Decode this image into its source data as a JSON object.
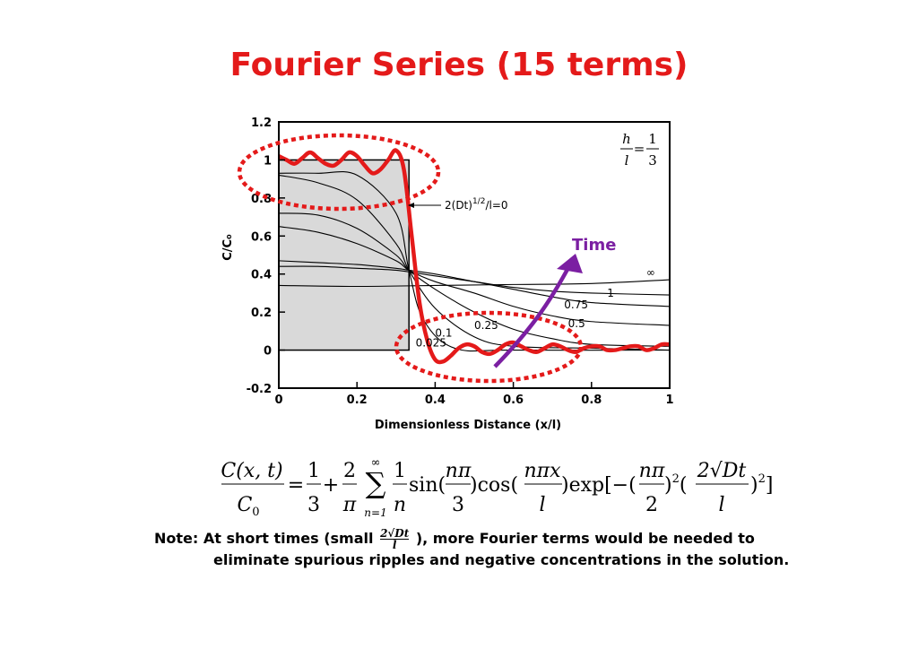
{
  "title": "Fourier Series (15 terms)",
  "colors": {
    "title": "#e41a1a",
    "fourier": "#e41a1a",
    "time_arrow": "#7b1fa2",
    "shaded": "#d9d9d9"
  },
  "chart_data": {
    "type": "line",
    "xlabel": "Dimensionless Distance (x/l)",
    "ylabel": "C/C₀",
    "xlim": [
      0,
      1
    ],
    "ylim": [
      -0.2,
      1.2
    ],
    "x_ticks": [
      "0",
      "0.2",
      "0.4",
      "0.6",
      "0.8",
      "1"
    ],
    "y_ticks": [
      "1.2",
      "1",
      "0.8",
      "0.6",
      "0.4",
      "0.2",
      "0",
      "-0.2"
    ],
    "ratio_label": {
      "lhs_num": "h",
      "lhs_den": "l",
      "rhs_num": "1",
      "rhs_den": "3"
    },
    "initial_label": "2(Dt)¹ᐟ²/l=0",
    "initial_label_parts": {
      "pre": "2(Dt)",
      "sup": "1/2",
      "post": "/l=0"
    },
    "time_label": "Time",
    "series": [
      {
        "name": "0",
        "x": [
          0,
          0.333,
          0.333,
          1
        ],
        "y": [
          1,
          1,
          0,
          0
        ]
      },
      {
        "name": "0.025",
        "x": [
          0,
          0.1,
          0.2,
          0.3,
          0.333,
          0.37,
          0.45,
          0.6,
          1
        ],
        "y": [
          0.93,
          0.93,
          0.92,
          0.72,
          0.42,
          0.16,
          0.01,
          0,
          0
        ]
      },
      {
        "name": "0.1",
        "x": [
          0,
          0.1,
          0.2,
          0.3,
          0.333,
          0.4,
          0.5,
          0.6,
          0.8,
          1
        ],
        "y": [
          0.92,
          0.88,
          0.79,
          0.56,
          0.42,
          0.22,
          0.07,
          0.02,
          0.01,
          0
        ]
      },
      {
        "name": "0.25",
        "x": [
          0,
          0.1,
          0.2,
          0.3,
          0.333,
          0.4,
          0.5,
          0.6,
          0.7,
          0.8,
          1
        ],
        "y": [
          0.72,
          0.71,
          0.64,
          0.5,
          0.42,
          0.32,
          0.2,
          0.11,
          0.06,
          0.03,
          0.02
        ]
      },
      {
        "name": "0.5",
        "x": [
          0,
          0.1,
          0.2,
          0.3,
          0.333,
          0.4,
          0.5,
          0.6,
          0.7,
          0.8,
          1
        ],
        "y": [
          0.65,
          0.62,
          0.56,
          0.47,
          0.42,
          0.36,
          0.3,
          0.23,
          0.18,
          0.15,
          0.13
        ]
      },
      {
        "name": "0.75",
        "x": [
          0,
          0.1,
          0.2,
          0.3,
          0.333,
          0.4,
          0.5,
          0.6,
          0.7,
          0.8,
          1
        ],
        "y": [
          0.47,
          0.46,
          0.45,
          0.43,
          0.42,
          0.4,
          0.36,
          0.32,
          0.28,
          0.25,
          0.23
        ]
      },
      {
        "name": "1",
        "x": [
          0,
          0.1,
          0.2,
          0.3,
          0.4,
          0.5,
          0.6,
          0.7,
          0.8,
          1
        ],
        "y": [
          0.44,
          0.44,
          0.43,
          0.42,
          0.39,
          0.36,
          0.33,
          0.31,
          0.3,
          0.29
        ]
      },
      {
        "name": "∞",
        "x": [
          0,
          0.2,
          0.4,
          0.6,
          0.8,
          1
        ],
        "y": [
          0.34,
          0.335,
          0.34,
          0.345,
          0.35,
          0.37
        ]
      },
      {
        "name": "Fourier Series (15 terms)",
        "color": "#e41a1a",
        "x": [
          0,
          0.02,
          0.04,
          0.06,
          0.08,
          0.1,
          0.12,
          0.14,
          0.16,
          0.18,
          0.2,
          0.22,
          0.24,
          0.26,
          0.28,
          0.3,
          0.32,
          0.34,
          0.36,
          0.38,
          0.4,
          0.42,
          0.44,
          0.46,
          0.48,
          0.5,
          0.52,
          0.54,
          0.56,
          0.58,
          0.6,
          0.62,
          0.64,
          0.66,
          0.68,
          0.7,
          0.72,
          0.74,
          0.76,
          0.78,
          0.8,
          0.82,
          0.84,
          0.86,
          0.88,
          0.9,
          0.92,
          0.94,
          0.96,
          0.98,
          1
        ],
        "y": [
          1.02,
          1.0,
          0.98,
          1.01,
          1.04,
          1.01,
          0.98,
          0.97,
          1.0,
          1.04,
          1.02,
          0.97,
          0.93,
          0.95,
          1.0,
          1.05,
          0.95,
          0.6,
          0.25,
          0.05,
          -0.05,
          -0.06,
          -0.03,
          0.01,
          0.03,
          0.02,
          -0.01,
          -0.02,
          0.0,
          0.03,
          0.04,
          0.02,
          0.0,
          -0.01,
          0.01,
          0.03,
          0.02,
          0.0,
          -0.01,
          0.01,
          0.02,
          0.02,
          0.0,
          0.0,
          0.01,
          0.02,
          0.02,
          0.0,
          0.01,
          0.03,
          0.03
        ]
      }
    ],
    "curve_labels": [
      "0.025",
      "0.1",
      "0.25",
      "0.5",
      "0.75",
      "1",
      "∞"
    ]
  },
  "formula": {
    "lhs_num": "C(x, t)",
    "lhs_den": "C",
    "lhs_den_sub": "0",
    "equals": "=",
    "term1_num": "1",
    "term1_den": "3",
    "plus": "+",
    "term2_num": "2",
    "term2_den": "π",
    "sum_upper": "∞",
    "sum_lower": "n=1",
    "term3_num": "1",
    "term3_den": "n",
    "sin_part": "sin(",
    "sin_num": "nπ",
    "sin_den": "3",
    "cos_part": ")cos(",
    "cos_num": "nπx",
    "cos_den": "l",
    "exp_part": ")exp[−(",
    "exp_num": "nπ",
    "exp_den": "2",
    "sq1": "2",
    "open2": ")",
    "d_num": "2√Dt",
    "d_den": "l",
    "sq2": "2",
    "close": ")",
    "bracket": "]"
  },
  "note": {
    "line1_pre": "Note: At short times (small ",
    "small_num": "2√Dt",
    "small_den": "l",
    "line1_post": " ), more Fourier terms would be needed to",
    "line2": "eliminate spurious ripples and negative concentrations in the solution."
  }
}
